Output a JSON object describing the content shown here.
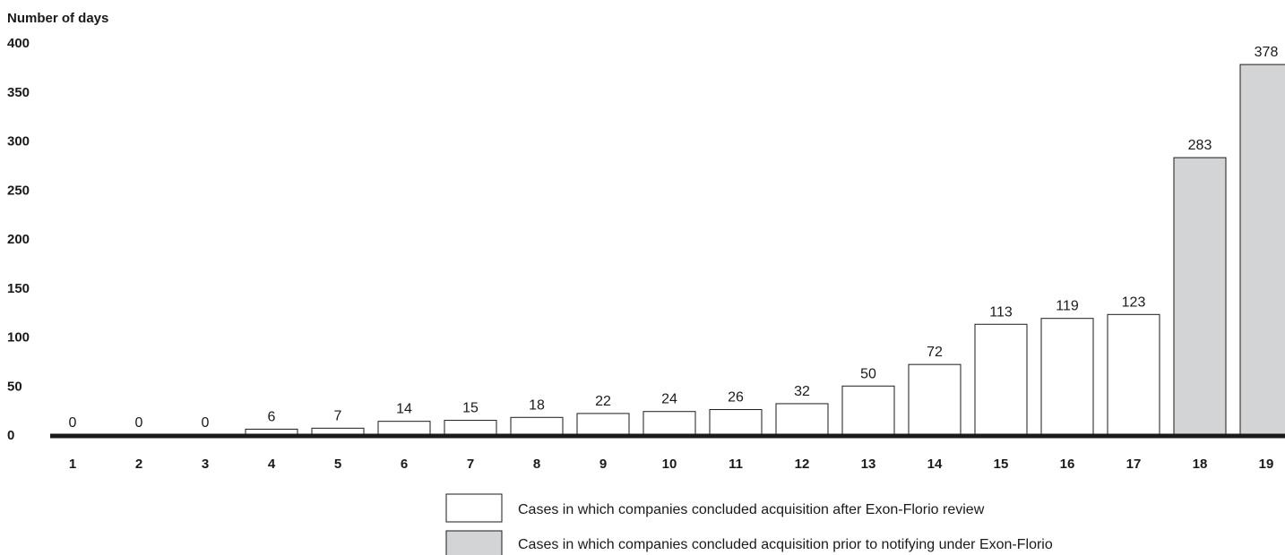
{
  "chart_data": {
    "type": "bar",
    "ylabel": "Number of days",
    "xlabel": "",
    "ylim": [
      0,
      400
    ],
    "yticks": [
      0,
      50,
      100,
      150,
      200,
      250,
      300,
      350,
      400
    ],
    "categories": [
      "1",
      "2",
      "3",
      "4",
      "5",
      "6",
      "7",
      "8",
      "9",
      "10",
      "11",
      "12",
      "13",
      "14",
      "15",
      "16",
      "17",
      "18",
      "19"
    ],
    "series": [
      {
        "name": "Cases in which companies concluded acquisition after Exon-Florio review",
        "color": "#ffffff",
        "values": [
          0,
          0,
          0,
          6,
          7,
          14,
          15,
          18,
          22,
          24,
          26,
          32,
          50,
          72,
          113,
          119,
          123,
          null,
          null
        ]
      },
      {
        "name": "Cases in which companies concluded acquisition prior to notifying under Exon-Florio",
        "color": "#d3d4d6",
        "values": [
          null,
          null,
          null,
          null,
          null,
          null,
          null,
          null,
          null,
          null,
          null,
          null,
          null,
          null,
          null,
          null,
          null,
          283,
          378
        ]
      }
    ],
    "data_labels": [
      "0",
      "0",
      "0",
      "6",
      "7",
      "14",
      "15",
      "18",
      "22",
      "24",
      "26",
      "32",
      "50",
      "72",
      "113",
      "119",
      "123",
      "283",
      "378"
    ],
    "grid": false,
    "legend_position": "bottom-center"
  }
}
